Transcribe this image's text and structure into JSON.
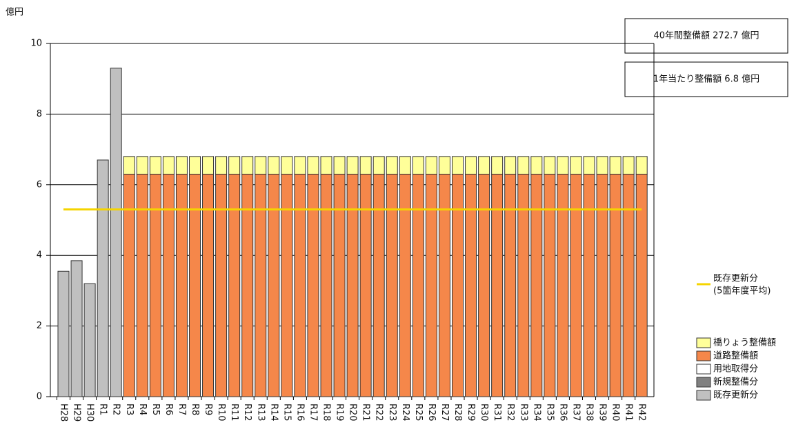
{
  "chart_data": {
    "type": "stacked_bar",
    "y_unit": "億円",
    "ylim": [
      0,
      10
    ],
    "yticks": [
      0,
      2,
      4,
      6,
      8,
      10
    ],
    "grid": true,
    "annotations": [
      "40年間整備額  272.7 億円",
      "1年当たり整備額  6.8 億円"
    ],
    "categories": [
      "H28",
      "H29",
      "H30",
      "R1",
      "R2",
      "R3",
      "R4",
      "R5",
      "R6",
      "R7",
      "R8",
      "R9",
      "R10",
      "R11",
      "R12",
      "R13",
      "R14",
      "R15",
      "R16",
      "R17",
      "R18",
      "R19",
      "R20",
      "R21",
      "R22",
      "R23",
      "R24",
      "R25",
      "R26",
      "R27",
      "R28",
      "R29",
      "R30",
      "R31",
      "R32",
      "R33",
      "R34",
      "R35",
      "R36",
      "R37",
      "R38",
      "R39",
      "R40",
      "R41",
      "R42"
    ],
    "series": [
      {
        "name": "既存更新分",
        "color": "#c0c0c0",
        "values": [
          3.55,
          3.85,
          3.2,
          6.7,
          9.3,
          0,
          0,
          0,
          0,
          0,
          0,
          0,
          0,
          0,
          0,
          0,
          0,
          0,
          0,
          0,
          0,
          0,
          0,
          0,
          0,
          0,
          0,
          0,
          0,
          0,
          0,
          0,
          0,
          0,
          0,
          0,
          0,
          0,
          0,
          0,
          0,
          0,
          0,
          0,
          0
        ]
      },
      {
        "name": "新規整備分",
        "color": "#808080",
        "values": [
          0,
          0,
          0,
          0,
          0,
          0,
          0,
          0,
          0,
          0,
          0,
          0,
          0,
          0,
          0,
          0,
          0,
          0,
          0,
          0,
          0,
          0,
          0,
          0,
          0,
          0,
          0,
          0,
          0,
          0,
          0,
          0,
          0,
          0,
          0,
          0,
          0,
          0,
          0,
          0,
          0,
          0,
          0,
          0,
          0
        ]
      },
      {
        "name": "用地取得分",
        "color": "#ffffff",
        "values": [
          0,
          0,
          0,
          0,
          0,
          0,
          0,
          0,
          0,
          0,
          0,
          0,
          0,
          0,
          0,
          0,
          0,
          0,
          0,
          0,
          0,
          0,
          0,
          0,
          0,
          0,
          0,
          0,
          0,
          0,
          0,
          0,
          0,
          0,
          0,
          0,
          0,
          0,
          0,
          0,
          0,
          0,
          0,
          0,
          0
        ]
      },
      {
        "name": "道路整備額",
        "color": "#f5874a",
        "values": [
          0,
          0,
          0,
          0,
          0,
          6.3,
          6.3,
          6.3,
          6.3,
          6.3,
          6.3,
          6.3,
          6.3,
          6.3,
          6.3,
          6.3,
          6.3,
          6.3,
          6.3,
          6.3,
          6.3,
          6.3,
          6.3,
          6.3,
          6.3,
          6.3,
          6.3,
          6.3,
          6.3,
          6.3,
          6.3,
          6.3,
          6.3,
          6.3,
          6.3,
          6.3,
          6.3,
          6.3,
          6.3,
          6.3,
          6.3,
          6.3,
          6.3,
          6.3,
          6.3
        ]
      },
      {
        "name": "橋りょう整備額",
        "color": "#ffff99",
        "values": [
          0,
          0,
          0,
          0,
          0,
          0.5,
          0.5,
          0.5,
          0.5,
          0.5,
          0.5,
          0.5,
          0.5,
          0.5,
          0.5,
          0.5,
          0.5,
          0.5,
          0.5,
          0.5,
          0.5,
          0.5,
          0.5,
          0.5,
          0.5,
          0.5,
          0.5,
          0.5,
          0.5,
          0.5,
          0.5,
          0.5,
          0.5,
          0.5,
          0.5,
          0.5,
          0.5,
          0.5,
          0.5,
          0.5,
          0.5,
          0.5,
          0.5,
          0.5,
          0.5
        ]
      }
    ],
    "average_line": {
      "name": "既存更新分",
      "note": "(5箇年度平均)",
      "color": "#f5d400",
      "values": [
        5.3,
        5.3,
        5.3,
        5.3,
        5.3,
        5.3,
        5.3,
        5.3,
        5.3,
        5.3,
        5.3,
        5.3,
        5.3,
        5.3,
        5.3,
        5.3,
        5.3,
        5.3,
        5.3,
        5.3,
        5.3,
        5.3,
        5.3,
        5.3,
        5.3,
        5.3,
        5.3,
        5.3,
        5.3,
        5.3,
        5.3,
        5.3,
        5.3,
        5.3,
        5.3,
        5.3,
        5.3,
        5.3,
        5.3,
        5.3,
        5.3,
        5.3,
        5.3,
        5.3,
        5.3
      ]
    }
  }
}
